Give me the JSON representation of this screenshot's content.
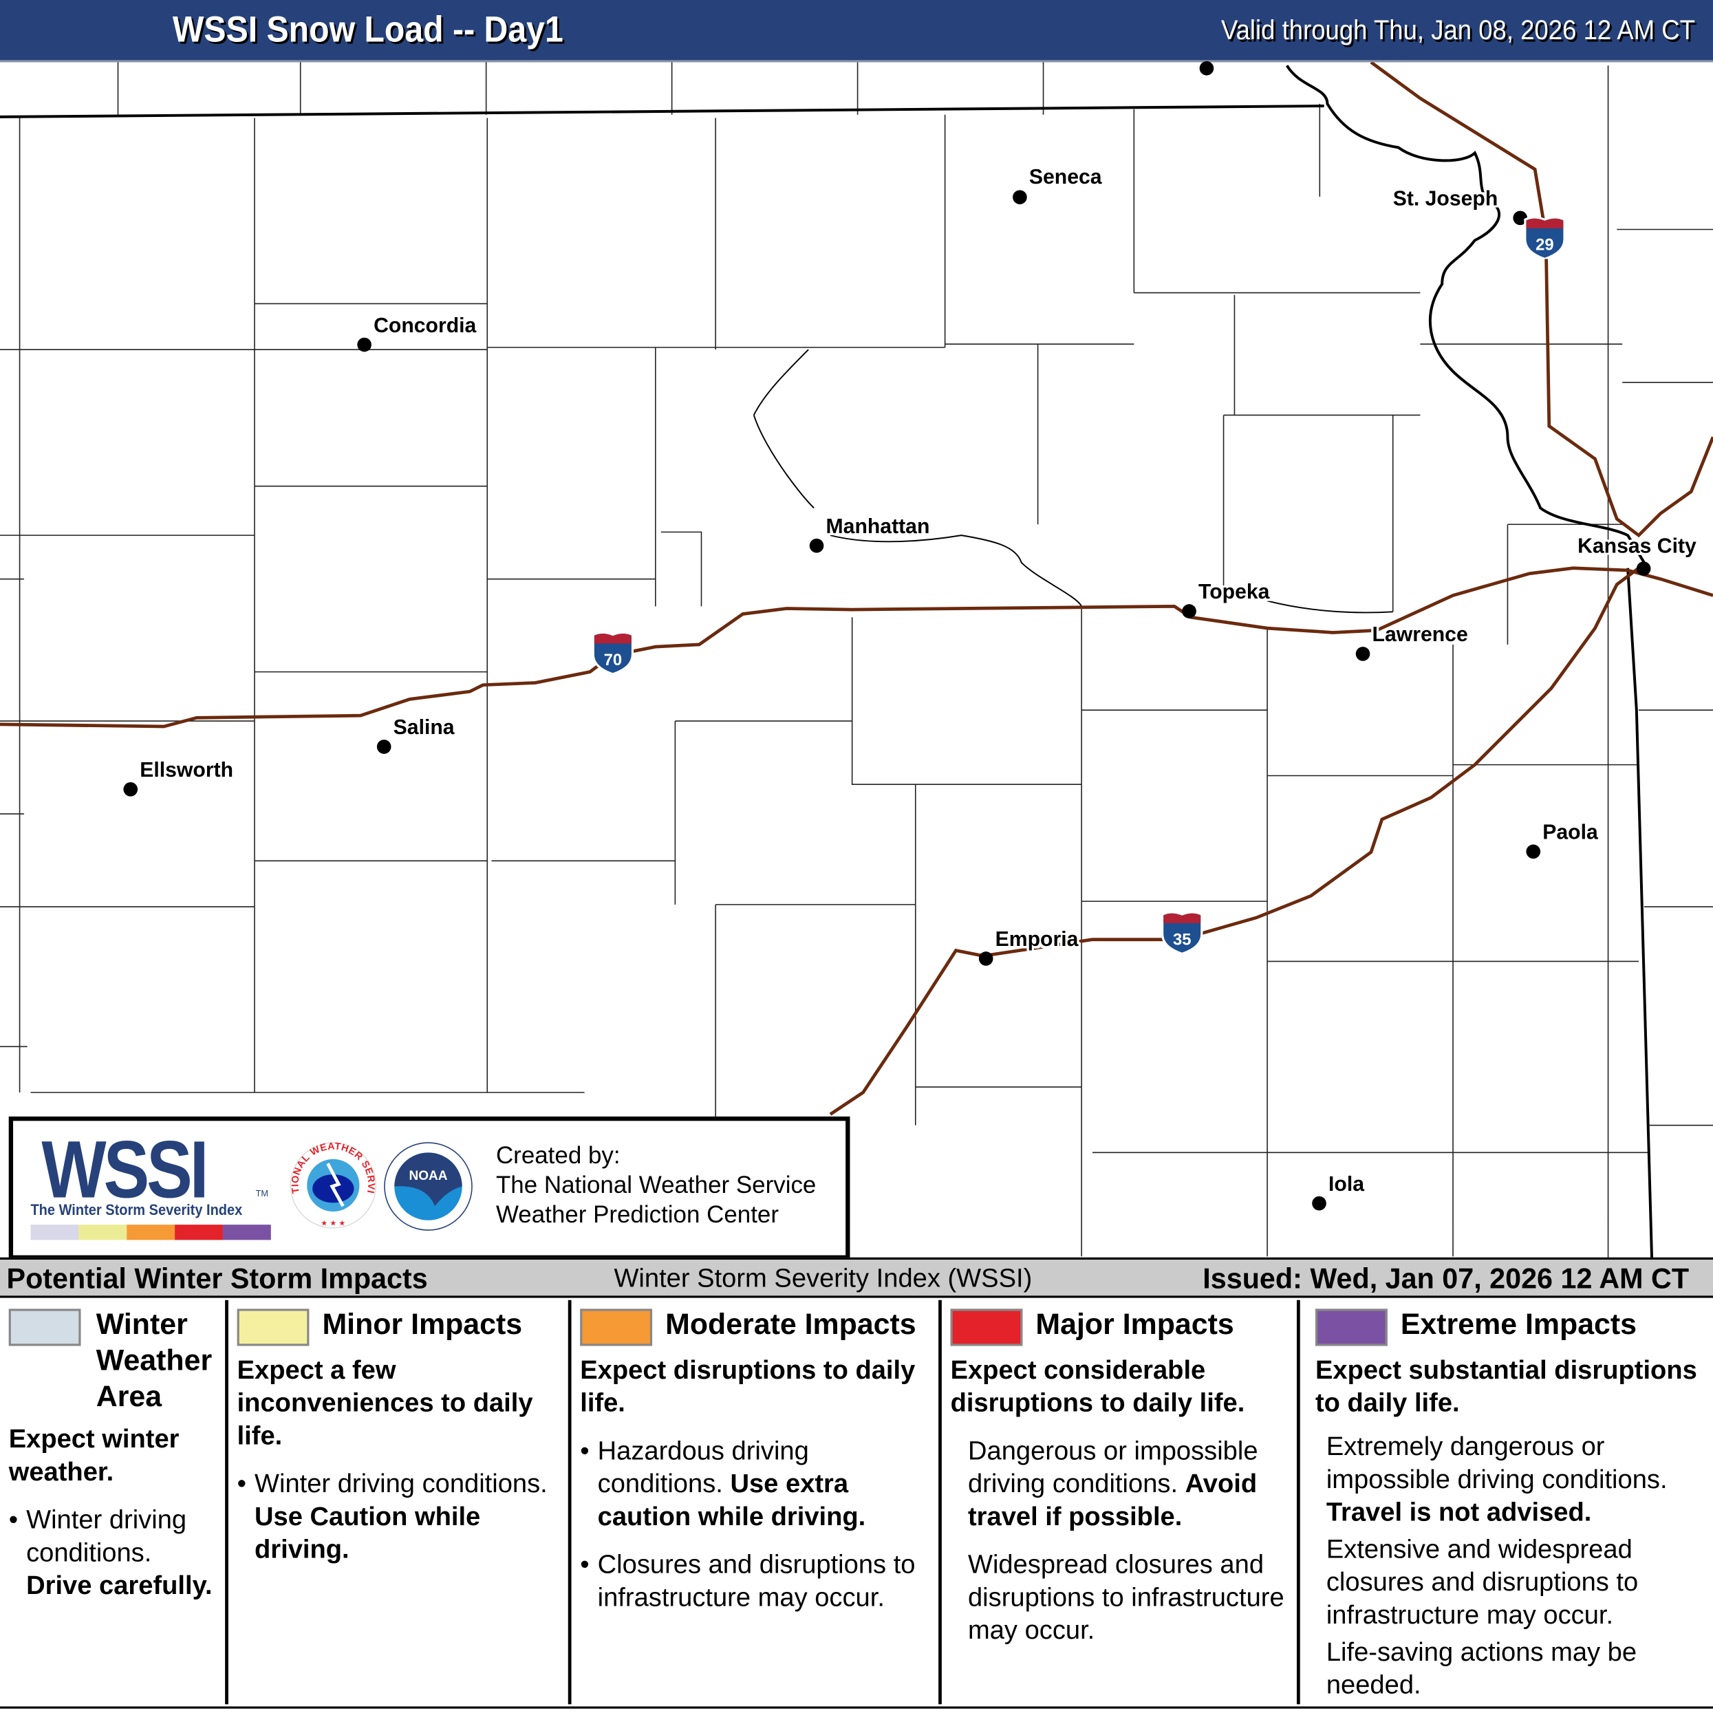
{
  "header": {
    "title": "WSSI Snow Load -- Day1",
    "valid": "Valid through Thu, Jan 08, 2026 12 AM CT"
  },
  "map": {
    "road_color": "#6b2a0e",
    "cities": [
      {
        "name": "Seneca"
      },
      {
        "name": "St. Joseph"
      },
      {
        "name": "Concordia"
      },
      {
        "name": "Manhattan"
      },
      {
        "name": "Kansas City"
      },
      {
        "name": "Topeka"
      },
      {
        "name": "Lawrence"
      },
      {
        "name": "Salina"
      },
      {
        "name": "Ellsworth"
      },
      {
        "name": "Paola"
      },
      {
        "name": "Emporia"
      },
      {
        "name": "Iola"
      }
    ],
    "shields": [
      {
        "route": "29"
      },
      {
        "route": "70"
      },
      {
        "route": "35"
      }
    ]
  },
  "logo": {
    "wordmark": "WSSI",
    "tm": "TM",
    "tagline": "The Winter Storm Severity Index",
    "created_by": "Created by:",
    "org1": "The National Weather Service",
    "org2": "Weather Prediction Center",
    "nws_text": "NATIONAL WEATHER SERVICE",
    "noaa_text": "NOAA"
  },
  "legend_bar": {
    "title": "Potential Winter Storm Impacts",
    "index": "Winter Storm Severity Index (WSSI)",
    "issued": "Issued: Wed, Jan 07, 2026 12 AM CT"
  },
  "categories": [
    {
      "name": "Winter Weather Area",
      "color": "#d2dde6",
      "summary": "Expect winter weather.",
      "b1": "Winter driving conditions.",
      "b1b": "Drive carefully."
    },
    {
      "name": "Minor Impacts",
      "color": "#f5f0a0",
      "summary": "Expect a few inconveniences to daily life.",
      "b1": "Winter driving conditions.",
      "b1b": "Use Caution while driving."
    },
    {
      "name": "Moderate Impacts",
      "color": "#f59a35",
      "summary": "Expect disruptions to daily life.",
      "b1": "Hazardous driving conditions.",
      "b1b": "Use extra caution while driving.",
      "b2": "Closures and disruptions to infrastructure may occur."
    },
    {
      "name": "Major Impacts",
      "color": "#e3222a",
      "summary": "Expect considerable disruptions to daily life.",
      "b1": "Dangerous or impossible driving conditions.",
      "b1b": "Avoid travel if possible.",
      "b2": "Widespread closures and disruptions to infrastructure may occur."
    },
    {
      "name": "Extreme Impacts",
      "color": "#7b52a3",
      "summary": "Expect substantial disruptions to daily life.",
      "b1": "Extremely dangerous or impossible driving conditions.",
      "b1b": "Travel is not advised.",
      "b2": "Extensive and widespread closures and disruptions to infrastructure may occur.",
      "b3": "Life-saving actions may be needed."
    }
  ]
}
